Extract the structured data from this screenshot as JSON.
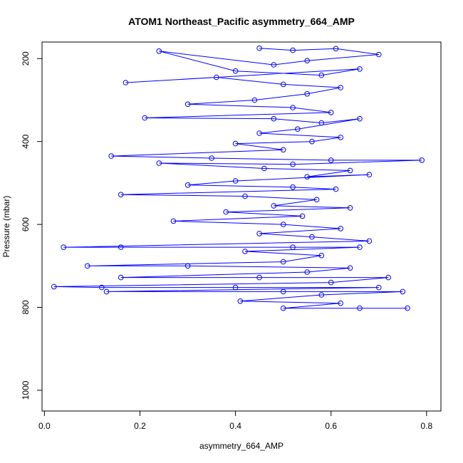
{
  "chart_data": {
    "type": "scatter",
    "title": "ATOM1 Northeast_Pacific asymmetry_664_AMP",
    "xlabel": "asymmetry_664_AMP",
    "ylabel": "Pressure (mbar)",
    "xlim": [
      -0.005,
      0.83
    ],
    "ylim": [
      1050,
      160
    ],
    "y_inverted": true,
    "x_ticks": [
      0.0,
      0.2,
      0.4,
      0.6,
      0.8
    ],
    "x_tick_labels": [
      "0.0",
      "0.2",
      "0.4",
      "0.6",
      "0.8"
    ],
    "y_ticks": [
      200,
      400,
      600,
      800,
      1000
    ],
    "y_tick_labels": [
      "200",
      "400",
      "600",
      "800",
      "1000"
    ],
    "grid": false,
    "legend": "none",
    "series": [
      {
        "color": "#0000ff",
        "marker": "open-circle",
        "connected": true,
        "points": [
          [
            0.45,
            175
          ],
          [
            0.52,
            180
          ],
          [
            0.61,
            176
          ],
          [
            0.7,
            190
          ],
          [
            0.55,
            205
          ],
          [
            0.48,
            215
          ],
          [
            0.24,
            182
          ],
          [
            0.4,
            230
          ],
          [
            0.58,
            240
          ],
          [
            0.66,
            225
          ],
          [
            0.17,
            258
          ],
          [
            0.36,
            245
          ],
          [
            0.5,
            262
          ],
          [
            0.62,
            270
          ],
          [
            0.55,
            285
          ],
          [
            0.44,
            300
          ],
          [
            0.3,
            310
          ],
          [
            0.52,
            318
          ],
          [
            0.6,
            330
          ],
          [
            0.21,
            343
          ],
          [
            0.48,
            345
          ],
          [
            0.58,
            355
          ],
          [
            0.66,
            345
          ],
          [
            0.53,
            370
          ],
          [
            0.45,
            380
          ],
          [
            0.62,
            390
          ],
          [
            0.56,
            400
          ],
          [
            0.4,
            405
          ],
          [
            0.5,
            420
          ],
          [
            0.14,
            435
          ],
          [
            0.35,
            440
          ],
          [
            0.6,
            445
          ],
          [
            0.79,
            445
          ],
          [
            0.52,
            455
          ],
          [
            0.24,
            452
          ],
          [
            0.46,
            465
          ],
          [
            0.64,
            470
          ],
          [
            0.55,
            485
          ],
          [
            0.68,
            480
          ],
          [
            0.4,
            495
          ],
          [
            0.3,
            505
          ],
          [
            0.52,
            510
          ],
          [
            0.61,
            515
          ],
          [
            0.16,
            528
          ],
          [
            0.42,
            532
          ],
          [
            0.57,
            540
          ],
          [
            0.48,
            555
          ],
          [
            0.64,
            560
          ],
          [
            0.38,
            570
          ],
          [
            0.54,
            580
          ],
          [
            0.27,
            592
          ],
          [
            0.5,
            600
          ],
          [
            0.62,
            610
          ],
          [
            0.45,
            622
          ],
          [
            0.56,
            630
          ],
          [
            0.68,
            640
          ],
          [
            0.04,
            655
          ],
          [
            0.16,
            655
          ],
          [
            0.52,
            655
          ],
          [
            0.66,
            655
          ],
          [
            0.42,
            665
          ],
          [
            0.58,
            675
          ],
          [
            0.5,
            690
          ],
          [
            0.09,
            700
          ],
          [
            0.3,
            700
          ],
          [
            0.64,
            705
          ],
          [
            0.55,
            715
          ],
          [
            0.16,
            728
          ],
          [
            0.45,
            728
          ],
          [
            0.72,
            728
          ],
          [
            0.6,
            740
          ],
          [
            0.02,
            750
          ],
          [
            0.12,
            752
          ],
          [
            0.4,
            752
          ],
          [
            0.7,
            752
          ],
          [
            0.13,
            762
          ],
          [
            0.5,
            762
          ],
          [
            0.75,
            762
          ],
          [
            0.58,
            770
          ],
          [
            0.41,
            785
          ],
          [
            0.62,
            790
          ],
          [
            0.5,
            802
          ],
          [
            0.66,
            802
          ],
          [
            0.76,
            802
          ]
        ]
      }
    ]
  }
}
